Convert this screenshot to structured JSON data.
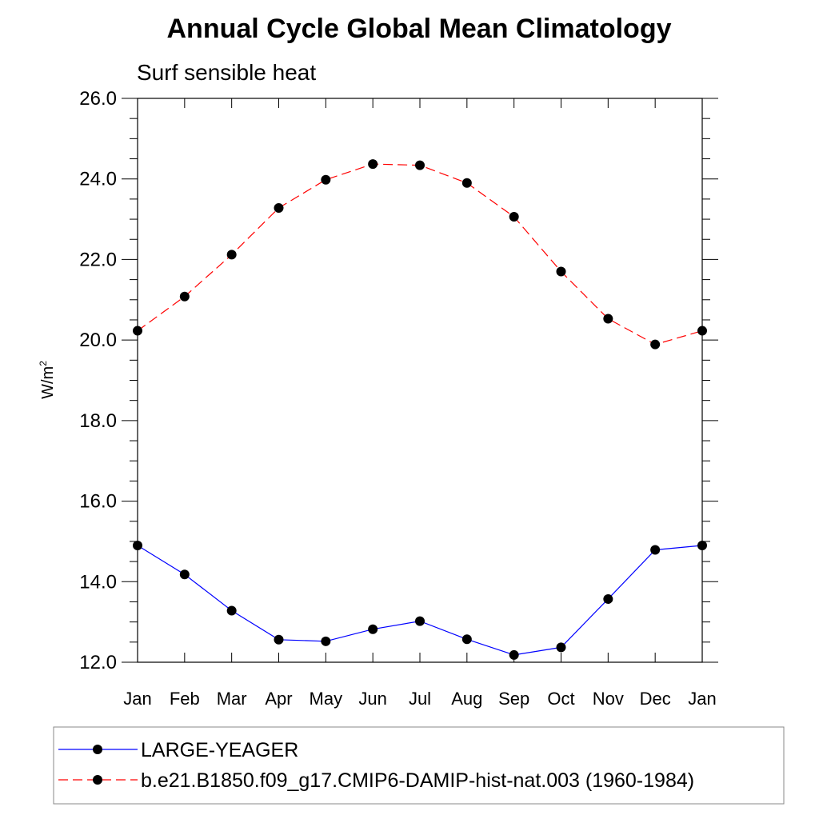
{
  "chart_data": {
    "type": "line",
    "title": "Annual Cycle Global Mean Climatology",
    "subtitle": "Surf sensible heat",
    "ylabel_base": "W/m",
    "ylabel_sup": "2",
    "xlabel": "",
    "categories": [
      "Jan",
      "Feb",
      "Mar",
      "Apr",
      "May",
      "Jun",
      "Jul",
      "Aug",
      "Sep",
      "Oct",
      "Nov",
      "Dec",
      "Jan"
    ],
    "ylim": [
      12.0,
      26.0
    ],
    "yticks": [
      "12.0",
      "14.0",
      "16.0",
      "18.0",
      "20.0",
      "22.0",
      "24.0",
      "26.0"
    ],
    "grid": false,
    "legend_position": "bottom",
    "series": [
      {
        "name": "LARGE-YEAGER",
        "color": "#0000ff",
        "dash": "solid",
        "values": [
          14.9,
          14.18,
          13.28,
          12.56,
          12.52,
          12.82,
          13.02,
          12.57,
          12.18,
          12.37,
          13.57,
          14.79,
          14.9
        ]
      },
      {
        "name": "b.e21.B1850.f09_g17.CMIP6-DAMIP-hist-nat.003 (1960-1984)",
        "color": "#ff0000",
        "dash": "dashed",
        "values": [
          20.23,
          21.08,
          22.12,
          23.28,
          23.98,
          24.37,
          24.34,
          23.9,
          23.06,
          21.7,
          20.53,
          19.89,
          20.23
        ]
      }
    ]
  }
}
